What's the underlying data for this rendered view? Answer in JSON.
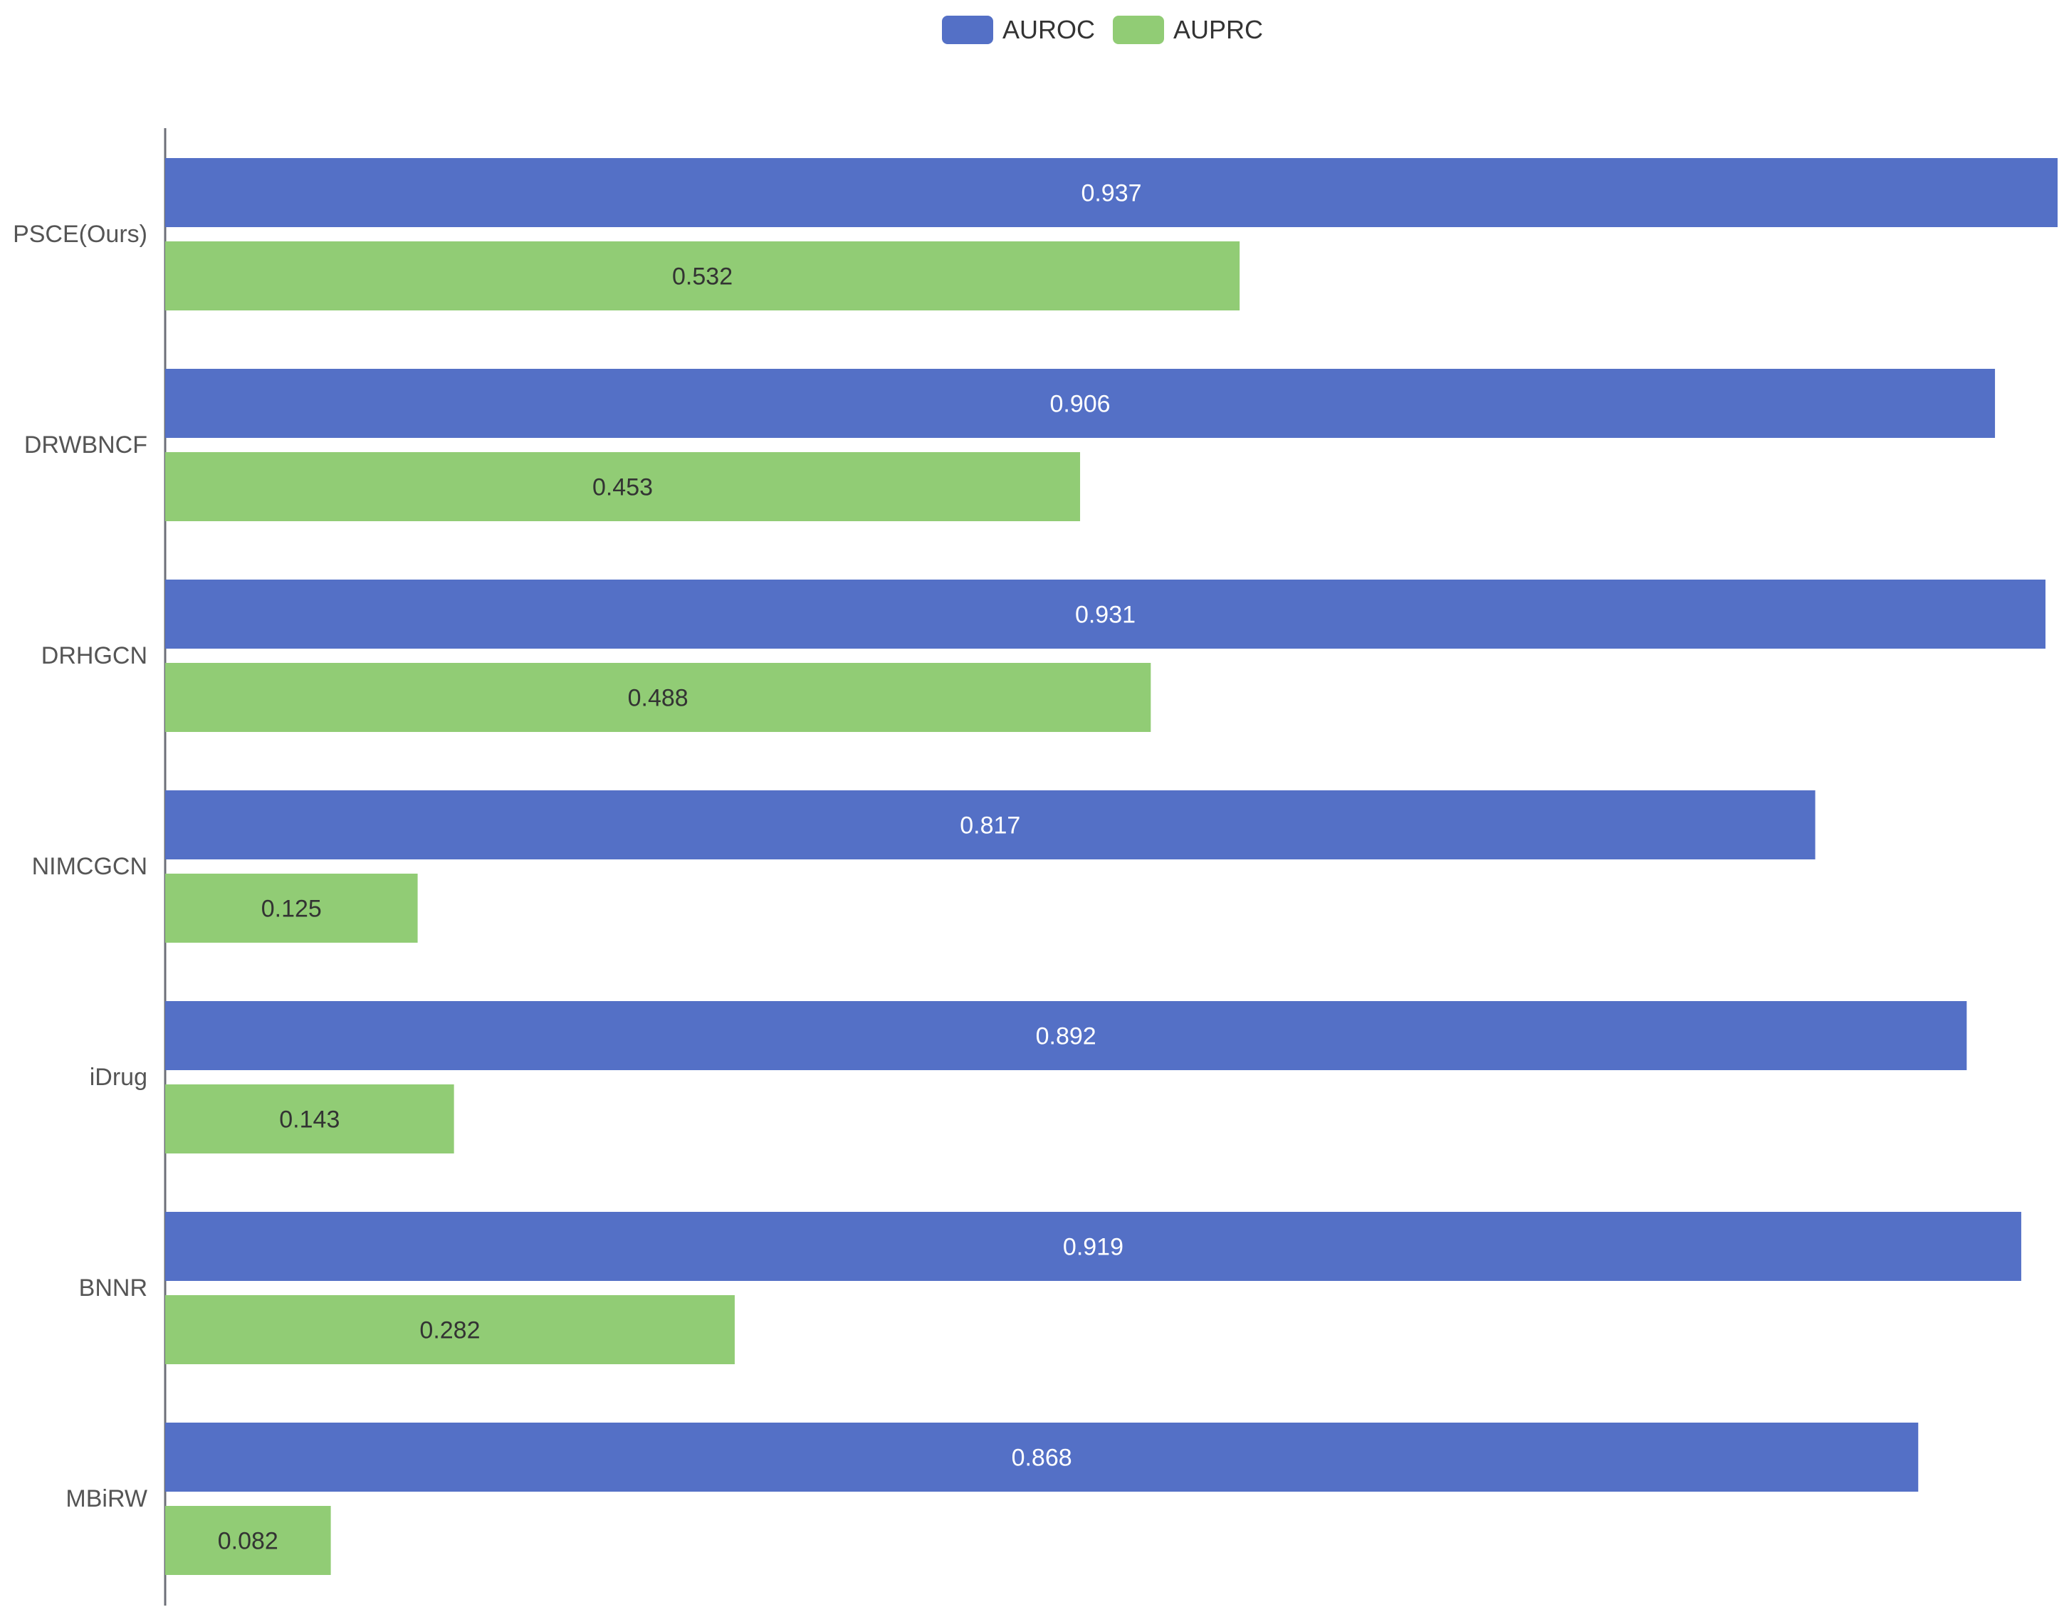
{
  "chart_data": {
    "type": "bar",
    "orientation": "horizontal",
    "categories": [
      "PSCE(Ours)",
      "DRWBNCF",
      "DRHGCN",
      "NIMCGCN",
      "iDrug",
      "BNNR",
      "MBiRW"
    ],
    "series": [
      {
        "name": "AUROC",
        "color": "#5470c6",
        "label_color": "#ffffff",
        "values": [
          0.937,
          0.906,
          0.931,
          0.817,
          0.892,
          0.919,
          0.868
        ],
        "labels": [
          "0.937",
          "0.906",
          "0.931",
          "0.817",
          "0.892",
          "0.919",
          "0.868"
        ]
      },
      {
        "name": "AUPRC",
        "color": "#91cc75",
        "label_color": "#333333",
        "values": [
          0.532,
          0.453,
          0.488,
          0.125,
          0.143,
          0.282,
          0.082
        ],
        "labels": [
          "0.532",
          "0.453",
          "0.488",
          "0.125",
          "0.143",
          "0.282",
          "0.082"
        ]
      }
    ],
    "xlim": [
      0,
      0.937
    ],
    "grid": false,
    "legend_position": "top-center",
    "data_labels": "inside-center"
  }
}
